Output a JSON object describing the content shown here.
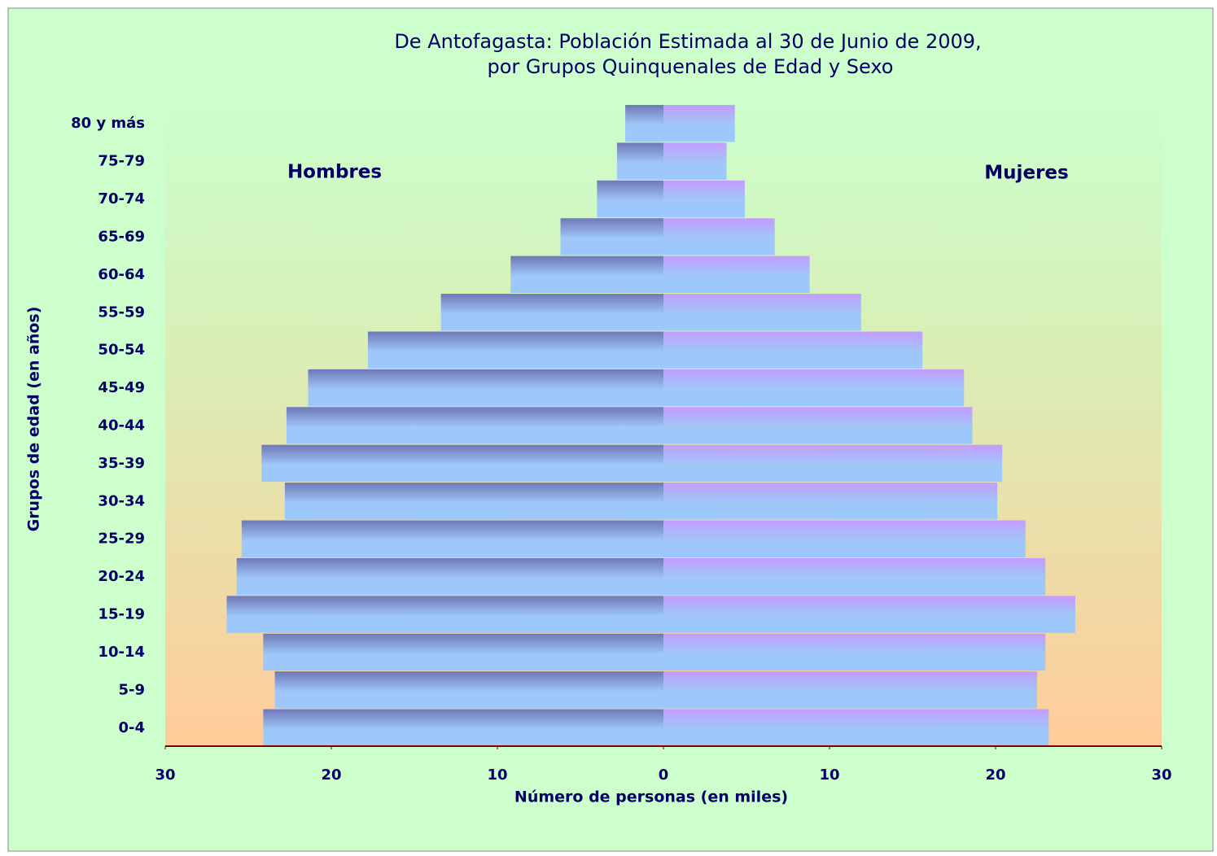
{
  "chart_data": {
    "type": "pyramid",
    "title": [
      "De Antofagasta: Población Estimada al 30 de Junio de 2009,",
      "por Grupos Quinquenales de Edad y Sexo"
    ],
    "x_label": "Número de personas (en miles)",
    "y_label": "Grupos de edad (en años)",
    "categories": [
      "0-4",
      "5-9",
      "10-14",
      "15-19",
      "20-24",
      "25-29",
      "30-34",
      "35-39",
      "40-44",
      "45-49",
      "50-54",
      "55-59",
      "60-64",
      "65-69",
      "70-74",
      "75-79",
      "80 y más"
    ],
    "series": [
      {
        "name": "Hombres",
        "color": "#6f78b8",
        "values": [
          24.1,
          23.4,
          24.1,
          26.3,
          25.7,
          25.4,
          22.8,
          24.2,
          22.7,
          21.4,
          17.8,
          13.4,
          9.2,
          6.2,
          4.0,
          2.8,
          2.3
        ]
      },
      {
        "name": "Mujeres",
        "color": "#c49cff",
        "values": [
          23.2,
          22.5,
          23.0,
          24.8,
          23.0,
          21.8,
          20.1,
          20.4,
          18.6,
          18.1,
          15.6,
          11.9,
          8.8,
          6.7,
          4.9,
          3.8,
          4.3
        ]
      }
    ],
    "xlim": [
      -30,
      30
    ],
    "xticks": [
      {
        "value": -30,
        "label": "30"
      },
      {
        "value": -20,
        "label": "20"
      },
      {
        "value": -10,
        "label": "10"
      },
      0,
      10,
      20,
      30
    ]
  }
}
